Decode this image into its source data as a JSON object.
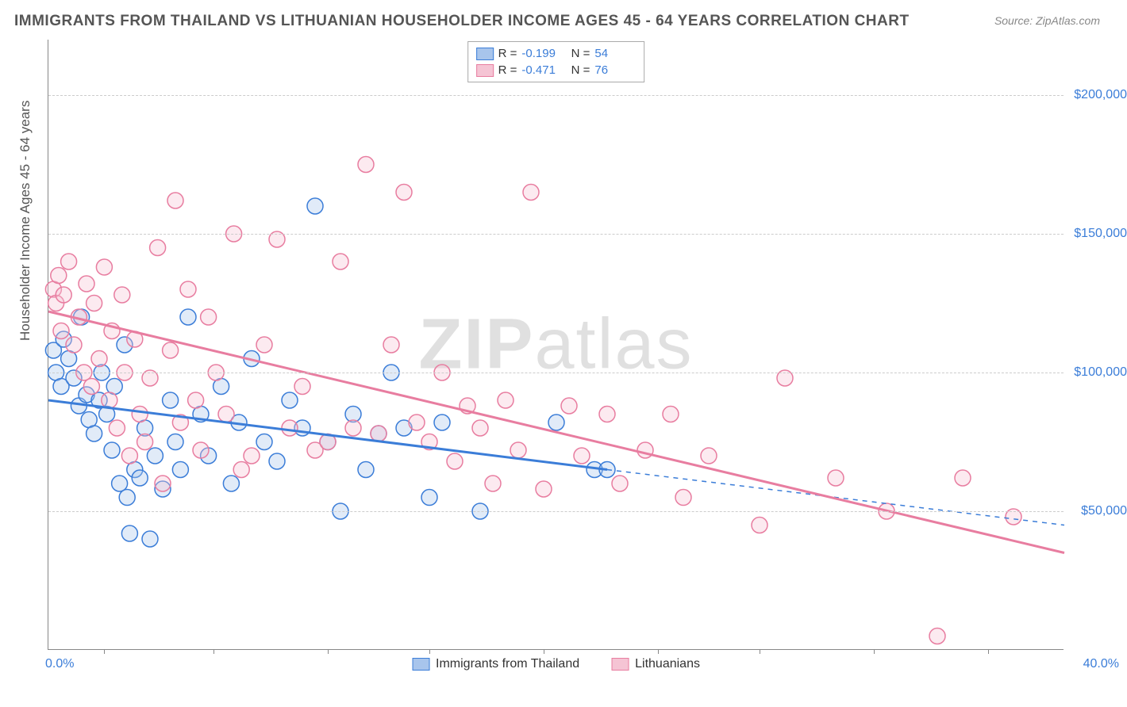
{
  "title": "IMMIGRANTS FROM THAILAND VS LITHUANIAN HOUSEHOLDER INCOME AGES 45 - 64 YEARS CORRELATION CHART",
  "source": "Source: ZipAtlas.com",
  "watermark": "ZIPatlas",
  "y_axis_label": "Householder Income Ages 45 - 64 years",
  "chart": {
    "type": "scatter",
    "xlim": [
      0,
      40
    ],
    "ylim": [
      0,
      220000
    ],
    "x_tick_min_label": "0.0%",
    "x_tick_max_label": "40.0%",
    "y_ticks": [
      50000,
      100000,
      150000,
      200000
    ],
    "y_tick_labels": [
      "$50,000",
      "$100,000",
      "$150,000",
      "$200,000"
    ],
    "x_minor_ticks": [
      2.2,
      6.5,
      11,
      15,
      19.5,
      24,
      28,
      32.5,
      37
    ],
    "grid_color": "#cccccc",
    "background_color": "#ffffff",
    "axis_color": "#888888",
    "tick_label_color": "#3b7dd8",
    "marker_radius": 10,
    "marker_stroke_width": 1.5,
    "marker_fill_opacity": 0.35,
    "trend_line_width": 3,
    "trend_dash_pattern": "6,6",
    "series": [
      {
        "name": "Immigrants from Thailand",
        "stroke": "#3b7dd8",
        "fill": "#a8c5ec",
        "R": "-0.199",
        "N": "54",
        "trend": {
          "x1": 0,
          "y1": 90000,
          "x2_solid": 22,
          "y2_solid": 65000,
          "x2": 40,
          "y2": 45000
        },
        "points": [
          [
            0.2,
            108000
          ],
          [
            0.3,
            100000
          ],
          [
            0.5,
            95000
          ],
          [
            0.6,
            112000
          ],
          [
            0.8,
            105000
          ],
          [
            1.0,
            98000
          ],
          [
            1.2,
            88000
          ],
          [
            1.3,
            120000
          ],
          [
            1.5,
            92000
          ],
          [
            1.6,
            83000
          ],
          [
            1.8,
            78000
          ],
          [
            2.0,
            90000
          ],
          [
            2.1,
            100000
          ],
          [
            2.3,
            85000
          ],
          [
            2.5,
            72000
          ],
          [
            2.6,
            95000
          ],
          [
            2.8,
            60000
          ],
          [
            3.0,
            110000
          ],
          [
            3.1,
            55000
          ],
          [
            3.2,
            42000
          ],
          [
            3.4,
            65000
          ],
          [
            3.6,
            62000
          ],
          [
            3.8,
            80000
          ],
          [
            4.0,
            40000
          ],
          [
            4.2,
            70000
          ],
          [
            4.5,
            58000
          ],
          [
            4.8,
            90000
          ],
          [
            5.0,
            75000
          ],
          [
            5.2,
            65000
          ],
          [
            5.5,
            120000
          ],
          [
            6.0,
            85000
          ],
          [
            6.3,
            70000
          ],
          [
            6.8,
            95000
          ],
          [
            7.2,
            60000
          ],
          [
            7.5,
            82000
          ],
          [
            8.0,
            105000
          ],
          [
            8.5,
            75000
          ],
          [
            9.0,
            68000
          ],
          [
            9.5,
            90000
          ],
          [
            10.0,
            80000
          ],
          [
            10.5,
            160000
          ],
          [
            11.0,
            75000
          ],
          [
            11.5,
            50000
          ],
          [
            12.0,
            85000
          ],
          [
            12.5,
            65000
          ],
          [
            13.0,
            78000
          ],
          [
            13.5,
            100000
          ],
          [
            14.0,
            80000
          ],
          [
            15.0,
            55000
          ],
          [
            15.5,
            82000
          ],
          [
            17.0,
            50000
          ],
          [
            20.0,
            82000
          ],
          [
            21.5,
            65000
          ],
          [
            22.0,
            65000
          ]
        ]
      },
      {
        "name": "Lithuanians",
        "stroke": "#e87da0",
        "fill": "#f5c4d4",
        "R": "-0.471",
        "N": "76",
        "trend": {
          "x1": 0,
          "y1": 122000,
          "x2_solid": 40,
          "y2_solid": 35000,
          "x2": 40,
          "y2": 35000
        },
        "points": [
          [
            0.2,
            130000
          ],
          [
            0.3,
            125000
          ],
          [
            0.4,
            135000
          ],
          [
            0.5,
            115000
          ],
          [
            0.6,
            128000
          ],
          [
            0.8,
            140000
          ],
          [
            1.0,
            110000
          ],
          [
            1.2,
            120000
          ],
          [
            1.4,
            100000
          ],
          [
            1.5,
            132000
          ],
          [
            1.7,
            95000
          ],
          [
            1.8,
            125000
          ],
          [
            2.0,
            105000
          ],
          [
            2.2,
            138000
          ],
          [
            2.4,
            90000
          ],
          [
            2.5,
            115000
          ],
          [
            2.7,
            80000
          ],
          [
            2.9,
            128000
          ],
          [
            3.0,
            100000
          ],
          [
            3.2,
            70000
          ],
          [
            3.4,
            112000
          ],
          [
            3.6,
            85000
          ],
          [
            3.8,
            75000
          ],
          [
            4.0,
            98000
          ],
          [
            4.3,
            145000
          ],
          [
            4.5,
            60000
          ],
          [
            4.8,
            108000
          ],
          [
            5.0,
            162000
          ],
          [
            5.2,
            82000
          ],
          [
            5.5,
            130000
          ],
          [
            5.8,
            90000
          ],
          [
            6.0,
            72000
          ],
          [
            6.3,
            120000
          ],
          [
            6.6,
            100000
          ],
          [
            7.0,
            85000
          ],
          [
            7.3,
            150000
          ],
          [
            7.6,
            65000
          ],
          [
            8.0,
            70000
          ],
          [
            8.5,
            110000
          ],
          [
            9.0,
            148000
          ],
          [
            9.5,
            80000
          ],
          [
            10.0,
            95000
          ],
          [
            10.5,
            72000
          ],
          [
            11.0,
            75000
          ],
          [
            11.5,
            140000
          ],
          [
            12.0,
            80000
          ],
          [
            12.5,
            175000
          ],
          [
            13.0,
            78000
          ],
          [
            13.5,
            110000
          ],
          [
            14.0,
            165000
          ],
          [
            14.5,
            82000
          ],
          [
            15.0,
            75000
          ],
          [
            15.5,
            100000
          ],
          [
            16.0,
            68000
          ],
          [
            16.5,
            88000
          ],
          [
            17.0,
            80000
          ],
          [
            17.5,
            60000
          ],
          [
            18.0,
            90000
          ],
          [
            18.5,
            72000
          ],
          [
            19.0,
            165000
          ],
          [
            19.5,
            58000
          ],
          [
            20.5,
            88000
          ],
          [
            21.0,
            70000
          ],
          [
            22.0,
            85000
          ],
          [
            22.5,
            60000
          ],
          [
            23.5,
            72000
          ],
          [
            24.5,
            85000
          ],
          [
            25.0,
            55000
          ],
          [
            26.0,
            70000
          ],
          [
            28.0,
            45000
          ],
          [
            29.0,
            98000
          ],
          [
            31.0,
            62000
          ],
          [
            33.0,
            50000
          ],
          [
            35.0,
            5000
          ],
          [
            36.0,
            62000
          ],
          [
            38.0,
            48000
          ]
        ]
      }
    ]
  },
  "bottom_legend": [
    {
      "label": "Immigrants from Thailand",
      "stroke": "#3b7dd8",
      "fill": "#a8c5ec"
    },
    {
      "label": "Lithuanians",
      "stroke": "#e87da0",
      "fill": "#f5c4d4"
    }
  ]
}
